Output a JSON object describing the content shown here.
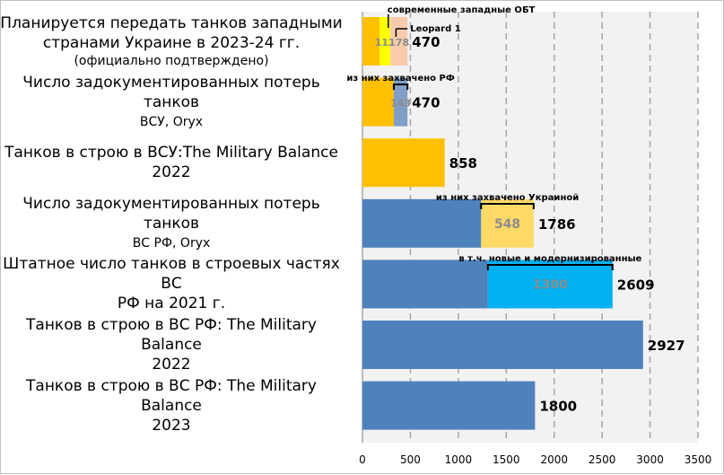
{
  "chart_data": {
    "type": "bar",
    "orientation": "horizontal",
    "stacked": true,
    "title": "",
    "xlabel": "",
    "ylabel": "",
    "xlim": [
      0,
      3500
    ],
    "x_ticks": [
      "0",
      "500",
      "1000",
      "1500",
      "2000",
      "2500",
      "3000",
      "3500"
    ],
    "grid": true,
    "categories": [
      {
        "lines": [
          "Планируется передать танков западными",
          "странами Украине в 2023-24 гг."
        ],
        "sub": "(официально подтверждено)"
      },
      {
        "lines": [
          "Число задокументированных потерь танков",
          "ВСУ, Oryx"
        ],
        "sub": ""
      },
      {
        "lines": [
          "Танков в строю в ВСУ:The Military Balance",
          "2022"
        ],
        "sub": ""
      },
      {
        "lines": [
          "Число задокументированных потерь танков",
          "ВС РФ, Oryx"
        ],
        "sub": ""
      },
      {
        "lines": [
          "Штатное число танков в строевых частях ВС",
          "РФ на 2021 г."
        ],
        "sub": ""
      },
      {
        "lines": [
          "Танков в строю в ВС РФ: The Military Balance",
          "2022"
        ],
        "sub": ""
      },
      {
        "lines": [
          "Танков в строю в ВС РФ: The Military Balance",
          "2023"
        ],
        "sub": ""
      }
    ],
    "bars": [
      {
        "total": 470,
        "segments": [
          {
            "value": 180,
            "color": "#ffc000",
            "label": ""
          },
          {
            "value": 112,
            "color": "#ffff00",
            "label": "112"
          },
          {
            "value": 178,
            "color": "#f8cbad",
            "label": "178"
          }
        ]
      },
      {
        "total": 470,
        "segments": [
          {
            "value": 327,
            "color": "#ffc000",
            "label": ""
          },
          {
            "value": 143,
            "color": "#7f9fc6",
            "label": "143"
          }
        ]
      },
      {
        "total": 858,
        "segments": [
          {
            "value": 858,
            "color": "#ffc000",
            "label": ""
          }
        ]
      },
      {
        "total": 1786,
        "segments": [
          {
            "value": 1238,
            "color": "#4f81bd",
            "label": ""
          },
          {
            "value": 548,
            "color": "#ffd966",
            "label": "548"
          }
        ]
      },
      {
        "total": 2609,
        "segments": [
          {
            "value": 1309,
            "color": "#4f81bd",
            "label": ""
          },
          {
            "value": 1300,
            "color": "#00b0f0",
            "label": "1300"
          }
        ]
      },
      {
        "total": 2927,
        "segments": [
          {
            "value": 2927,
            "color": "#4f81bd",
            "label": ""
          }
        ]
      },
      {
        "total": 1800,
        "segments": [
          {
            "value": 1800,
            "color": "#4f81bd",
            "label": ""
          }
        ]
      }
    ],
    "totals": [
      "470",
      "470",
      "858",
      "1786",
      "2609",
      "2927",
      "1800"
    ],
    "annotations": [
      {
        "text": "современные западные ОБТ",
        "bar": 0,
        "from": 180,
        "to": 470
      },
      {
        "text": "Leopard 1",
        "bar": 0,
        "from": 292,
        "to": 470
      },
      {
        "text": "из них захвачено РФ",
        "bar": 1,
        "from": 327,
        "to": 470
      },
      {
        "text": "из них захвачено Украиной",
        "bar": 3,
        "from": 1238,
        "to": 1786
      },
      {
        "text": "в т.ч. новые и модернизированные",
        "bar": 4,
        "from": 1309,
        "to": 2609
      }
    ]
  }
}
